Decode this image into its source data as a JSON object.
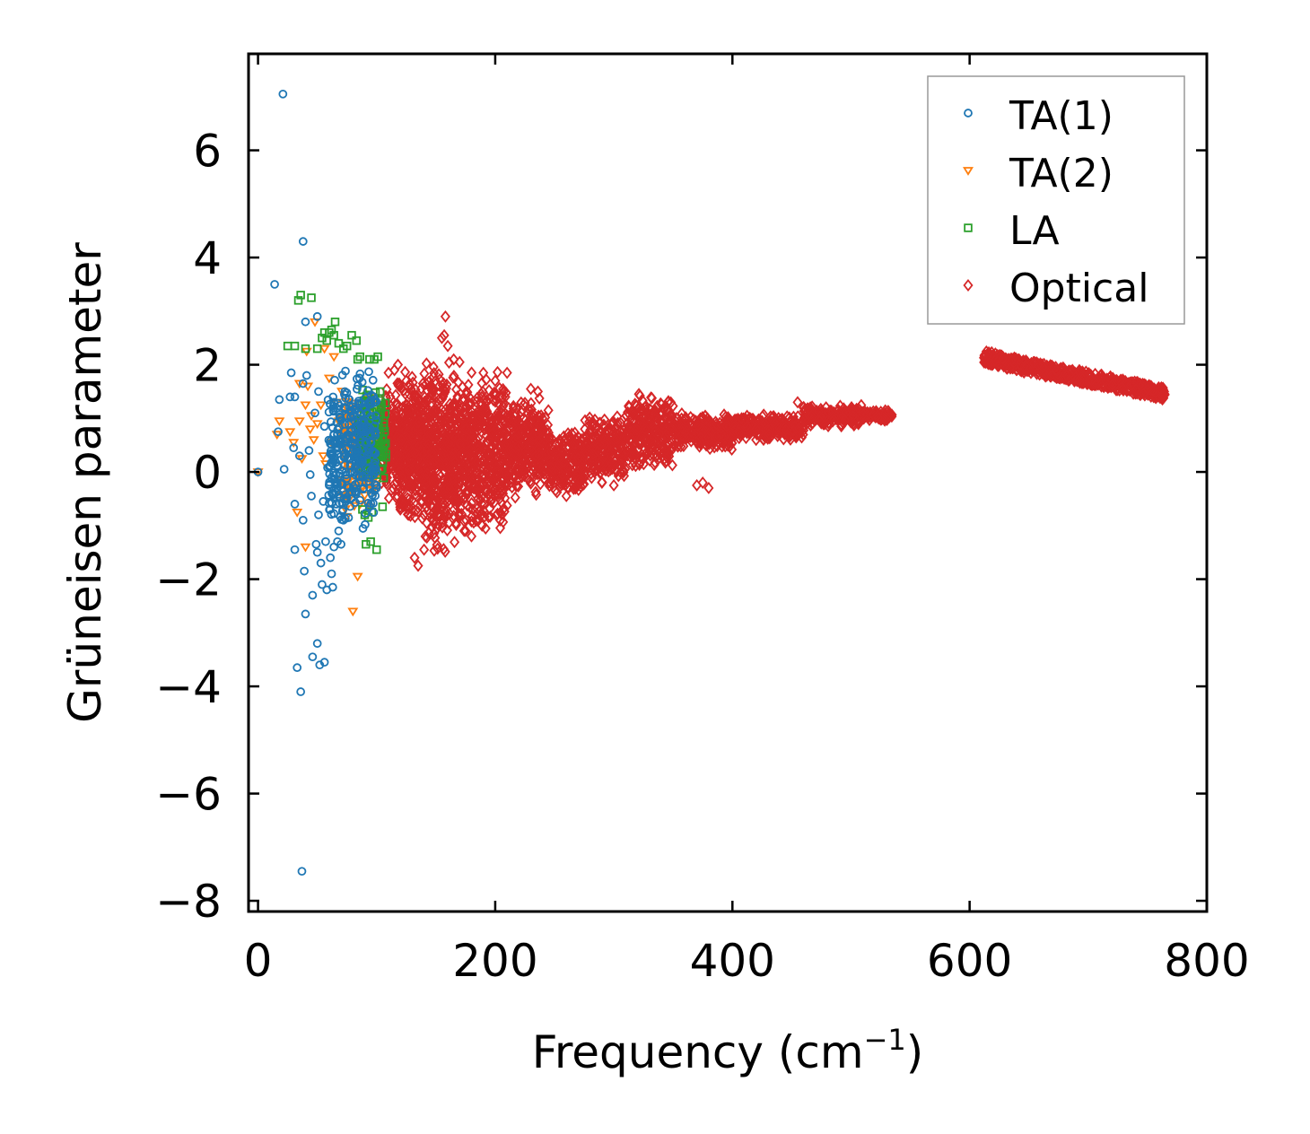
{
  "chart_data": {
    "type": "scatter",
    "title": "",
    "xlabel": "Frequency (cm",
    "xlabel_sup": "−1",
    "xlabel_close": ")",
    "ylabel": "Grüneisen parameter",
    "xlim": [
      -8,
      800
    ],
    "ylim": [
      -8.2,
      7.8
    ],
    "xticks": [
      0,
      200,
      400,
      600,
      800
    ],
    "xtick_labels": [
      "0",
      "200",
      "400",
      "600",
      "800"
    ],
    "yticks": [
      -8,
      -6,
      -4,
      -2,
      0,
      2,
      4,
      6
    ],
    "ytick_labels": [
      "−8",
      "−6",
      "−4",
      "−2",
      "0",
      "2",
      "4",
      "6"
    ],
    "legend_position": "top-right",
    "series": [
      {
        "name": "TA(1)",
        "marker": "circle",
        "color": "#1f77b4",
        "points": [
          [
            0,
            0
          ],
          [
            14,
            3.5
          ],
          [
            17,
            0.75
          ],
          [
            18,
            1.35
          ],
          [
            21,
            7.05
          ],
          [
            22,
            0.05
          ],
          [
            27,
            1.4
          ],
          [
            28,
            1.85
          ],
          [
            30,
            0.45
          ],
          [
            31,
            1.4
          ],
          [
            31,
            -0.6
          ],
          [
            31,
            -1.45
          ],
          [
            33,
            -3.65
          ],
          [
            35,
            0.3
          ],
          [
            36,
            -4.1
          ],
          [
            37,
            -7.45
          ],
          [
            38,
            4.3
          ],
          [
            38,
            1.65
          ],
          [
            38,
            -0.9
          ],
          [
            39,
            -1.85
          ],
          [
            40,
            2.8
          ],
          [
            40,
            -2.65
          ],
          [
            41,
            1.8
          ],
          [
            43,
            0.4
          ],
          [
            44,
            -0.05
          ],
          [
            45,
            -0.45
          ],
          [
            46,
            -2.3
          ],
          [
            46,
            -3.45
          ],
          [
            48,
            1.1
          ],
          [
            49,
            -1.35
          ],
          [
            50,
            2.9
          ],
          [
            50,
            -1.5
          ],
          [
            50,
            -3.2
          ],
          [
            51,
            1.5
          ],
          [
            51,
            -0.8
          ],
          [
            52,
            -3.6
          ],
          [
            53,
            -1.7
          ],
          [
            54,
            -2.1
          ],
          [
            55,
            -0.55
          ],
          [
            56,
            -3.55
          ],
          [
            56,
            0.85
          ],
          [
            57,
            -1.3
          ],
          [
            58,
            -2.2
          ],
          [
            60,
            -0.25
          ],
          [
            61,
            -1.6
          ],
          [
            62,
            -1.9
          ],
          [
            63,
            -2.15
          ],
          [
            64,
            -1.4
          ],
          [
            66,
            -0.6
          ],
          [
            67,
            -1.3
          ],
          [
            68,
            -1.1
          ],
          [
            70,
            -1.35
          ],
          [
            72,
            -0.9
          ],
          [
            74,
            -0.55
          ]
        ],
        "cluster": {
          "x": [
            58,
            100
          ],
          "y": [
            -1.1,
            2.0
          ],
          "count": 320
        }
      },
      {
        "name": "TA(2)",
        "marker": "triangle-down",
        "color": "#ff7f0e",
        "points": [
          [
            0,
            0
          ],
          [
            16,
            0.7
          ],
          [
            18,
            0.95
          ],
          [
            27,
            0.75
          ],
          [
            30,
            0.55
          ],
          [
            33,
            -0.75
          ],
          [
            35,
            1.65
          ],
          [
            35,
            0.95
          ],
          [
            37,
            0.25
          ],
          [
            40,
            -1.4
          ],
          [
            40,
            1.25
          ],
          [
            41,
            2.25
          ],
          [
            42,
            1.6
          ],
          [
            44,
            0.8
          ],
          [
            45,
            1.05
          ],
          [
            47,
            0.6
          ],
          [
            48,
            2.8
          ],
          [
            50,
            0.9
          ],
          [
            53,
            1.25
          ],
          [
            55,
            0.3
          ],
          [
            56,
            2.3
          ],
          [
            57,
            0.15
          ],
          [
            60,
            1.75
          ],
          [
            62,
            0.55
          ],
          [
            64,
            2.15
          ],
          [
            66,
            1.3
          ],
          [
            68,
            0.95
          ],
          [
            72,
            0.45
          ],
          [
            75,
            0.65
          ],
          [
            80,
            -2.6
          ],
          [
            84,
            -1.95
          ],
          [
            86,
            -0.6
          ],
          [
            88,
            -0.3
          ]
        ],
        "cluster": {
          "x": [
            70,
            100
          ],
          "y": [
            -0.9,
            1.6
          ],
          "count": 150
        }
      },
      {
        "name": "LA",
        "marker": "square",
        "color": "#2ca02c",
        "points": [
          [
            25,
            2.35
          ],
          [
            31,
            2.35
          ],
          [
            34,
            3.2
          ],
          [
            36,
            3.3
          ],
          [
            40,
            2.3
          ],
          [
            45,
            3.25
          ],
          [
            50,
            2.3
          ],
          [
            54,
            2.5
          ],
          [
            56,
            2.6
          ],
          [
            58,
            2.45
          ],
          [
            60,
            2.6
          ],
          [
            62,
            2.65
          ],
          [
            64,
            2.55
          ],
          [
            65,
            2.8
          ],
          [
            68,
            2.4
          ],
          [
            72,
            2.3
          ],
          [
            75,
            2.35
          ],
          [
            79,
            2.55
          ],
          [
            83,
            2.45
          ],
          [
            84,
            2.1
          ],
          [
            86,
            2.15
          ],
          [
            88,
            -0.7
          ],
          [
            90,
            -0.8
          ],
          [
            91,
            -1.35
          ],
          [
            93,
            -0.85
          ],
          [
            94,
            2.1
          ],
          [
            95,
            -1.3
          ],
          [
            96,
            -0.75
          ],
          [
            98,
            2.1
          ],
          [
            100,
            -1.45
          ],
          [
            101,
            2.15
          ],
          [
            103,
            1.5
          ],
          [
            105,
            -0.65
          ]
        ],
        "cluster": {
          "x": [
            85,
            108
          ],
          "y": [
            -0.2,
            1.6
          ],
          "count": 140
        }
      },
      {
        "name": "Optical",
        "marker": "diamond",
        "color": "#d62728",
        "points": [
          [
            110,
            1.85
          ],
          [
            115,
            1.9
          ],
          [
            118,
            2.0
          ],
          [
            120,
            -0.7
          ],
          [
            125,
            1.7
          ],
          [
            130,
            1.5
          ],
          [
            132,
            -1.6
          ],
          [
            135,
            -1.75
          ],
          [
            140,
            -1.45
          ],
          [
            145,
            1.6
          ],
          [
            150,
            1.4
          ],
          [
            155,
            2.5
          ],
          [
            157,
            2.55
          ],
          [
            158,
            2.9
          ],
          [
            160,
            2.35
          ],
          [
            165,
            2.1
          ],
          [
            170,
            2.05
          ],
          [
            175,
            -1.1
          ],
          [
            180,
            -1.2
          ],
          [
            190,
            1.85
          ],
          [
            200,
            1.7
          ],
          [
            210,
            1.85
          ],
          [
            230,
            1.55
          ],
          [
            236,
            1.5
          ],
          [
            245,
            -0.2
          ],
          [
            260,
            -0.45
          ],
          [
            290,
            -0.2
          ],
          [
            300,
            -0.25
          ],
          [
            370,
            -0.25
          ],
          [
            375,
            -0.2
          ],
          [
            380,
            -0.3
          ],
          [
            395,
            0.85
          ],
          [
            420,
            0.8
          ],
          [
            455,
            1.3
          ],
          [
            460,
            1.2
          ]
        ],
        "bands": [
          {
            "x": [
              104,
              115
            ],
            "y": [
              -0.6,
              1.6
            ],
            "count": 120
          },
          {
            "x": [
              115,
              140
            ],
            "y": [
              -1.0,
              1.9
            ],
            "count": 380
          },
          {
            "x": [
              140,
              170
            ],
            "y": [
              -1.5,
              2.1
            ],
            "count": 480
          },
          {
            "x": [
              170,
              210
            ],
            "y": [
              -1.2,
              1.9
            ],
            "count": 480
          },
          {
            "x": [
              210,
              245
            ],
            "y": [
              -0.5,
              1.4
            ],
            "count": 320
          },
          {
            "x": [
              245,
              275
            ],
            "y": [
              -0.45,
              0.8
            ],
            "count": 220
          },
          {
            "x": [
              275,
              310
            ],
            "y": [
              -0.2,
              1.1
            ],
            "count": 220
          },
          {
            "x": [
              310,
              350
            ],
            "y": [
              0.0,
              1.5
            ],
            "count": 260
          },
          {
            "x": [
              350,
              400
            ],
            "y": [
              0.4,
              1.1
            ],
            "count": 260
          },
          {
            "x": [
              400,
              460
            ],
            "y": [
              0.55,
              1.1
            ],
            "count": 240
          },
          {
            "x": [
              460,
              510
            ],
            "y": [
              0.85,
              1.25
            ],
            "count": 200
          },
          {
            "x": [
              510,
              535
            ],
            "y": [
              0.95,
              1.15
            ],
            "count": 90
          }
        ],
        "trend_segments": [
          {
            "x": [
              612,
              650
            ],
            "y0": [
              2.15,
              1.95
            ],
            "spread": 0.12,
            "count": 160
          },
          {
            "x": [
              650,
              700
            ],
            "y0": [
              1.95,
              1.75
            ],
            "spread": 0.12,
            "count": 200
          },
          {
            "x": [
              700,
              765
            ],
            "y0": [
              1.75,
              1.45
            ],
            "spread": 0.12,
            "count": 240
          }
        ]
      }
    ]
  }
}
